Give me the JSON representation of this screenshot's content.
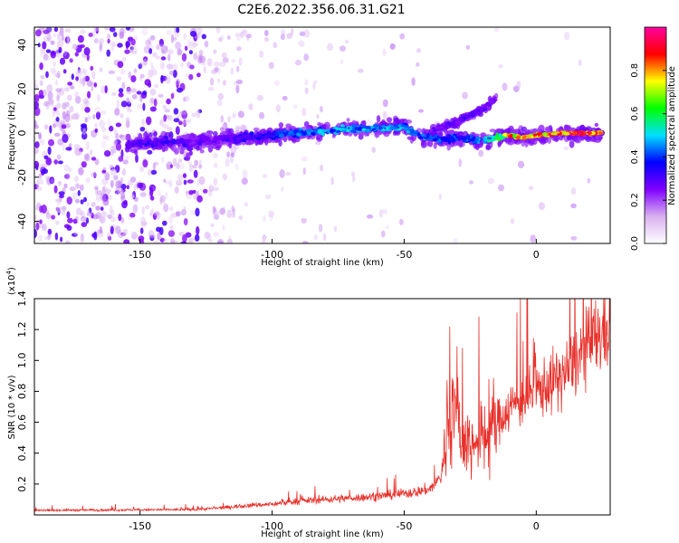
{
  "figure": {
    "title": "C2E6.2022.356.06.31.G21"
  },
  "chart_data": [
    {
      "type": "heatmap",
      "xlabel": "Height of straight line (km)",
      "ylabel": "Frequency (Hz)",
      "xlim": [
        -190,
        28
      ],
      "ylim": [
        -50,
        48
      ],
      "x_ticks": [
        -150,
        -100,
        -50,
        0
      ],
      "y_ticks": [
        -40,
        -20,
        0,
        20,
        40
      ],
      "colorbar": {
        "label": "Normalized spectral amplitude",
        "range": [
          0,
          1
        ],
        "ticks": [
          0.0,
          0.2,
          0.4,
          0.6,
          0.8
        ],
        "colormap": [
          "#ffffff",
          "#d8b0f0",
          "#8000ff",
          "#0000ff",
          "#00e0ff",
          "#00ff00",
          "#ffff00",
          "#ff0000",
          "#ff00a0"
        ]
      },
      "ridge": {
        "x": [
          -155,
          -140,
          -130,
          -120,
          -110,
          -100,
          -90,
          -80,
          -70,
          -60,
          -50,
          -45,
          -40,
          -35,
          -30,
          -25,
          -20,
          -15,
          -10,
          -5,
          0,
          5,
          10,
          15,
          20,
          25
        ],
        "frequency": [
          -5,
          -4,
          -4,
          -3,
          -2,
          -1,
          0,
          1,
          2,
          2,
          3,
          -1,
          -2,
          -3,
          -2,
          -3,
          -3,
          -2,
          -1,
          -2,
          -1,
          -0.5,
          0,
          0,
          0,
          0
        ],
        "amplitude": [
          0.3,
          0.35,
          0.3,
          0.3,
          0.35,
          0.4,
          0.45,
          0.5,
          0.5,
          0.5,
          0.5,
          0.45,
          0.45,
          0.45,
          0.4,
          0.45,
          0.5,
          0.6,
          0.85,
          0.85,
          0.9,
          0.9,
          0.92,
          0.95,
          0.95,
          0.9
        ]
      },
      "branch": {
        "x": [
          -40,
          -35,
          -30,
          -25,
          -20,
          -17,
          -15
        ],
        "frequency": [
          1,
          3,
          5,
          8,
          11,
          14,
          16
        ],
        "amplitude": [
          0.3,
          0.3,
          0.3,
          0.35,
          0.3,
          0.3,
          0.25
        ]
      }
    },
    {
      "type": "line",
      "xlabel": "Height of straight line (km)",
      "ylabel": "SNR (10 * v/v)",
      "y_multiplier": "(x10",
      "y_exponent": "4",
      "y_multiplier_close": ")",
      "xlim": [
        -190,
        28
      ],
      "ylim": [
        0,
        14000
      ],
      "x_ticks": [
        -150,
        -100,
        -50,
        0
      ],
      "y_ticks": [
        2000,
        4000,
        6000,
        8000,
        10000,
        12000,
        14000
      ],
      "y_tick_labels": [
        "0.2",
        "0.4",
        "0.6",
        "0.8",
        "1.0",
        "1.2",
        "1.4"
      ],
      "series": [
        {
          "color": "#e8302a",
          "envelope_x": [
            -190,
            -160,
            -130,
            -120,
            -110,
            -100,
            -90,
            -80,
            -70,
            -60,
            -50,
            -45,
            -40,
            -36,
            -34,
            -32,
            -30,
            -28,
            -25,
            -20,
            -15,
            -10,
            -5,
            0,
            5,
            10,
            15,
            20,
            25,
            28
          ],
          "envelope_y": [
            300,
            320,
            350,
            450,
            600,
            700,
            900,
            1000,
            1100,
            1200,
            1400,
            1500,
            1700,
            2500,
            5000,
            7000,
            6000,
            5000,
            4500,
            5000,
            6000,
            7000,
            7500,
            8000,
            8500,
            9000,
            10000,
            11000,
            11800,
            12000
          ]
        }
      ]
    }
  ]
}
